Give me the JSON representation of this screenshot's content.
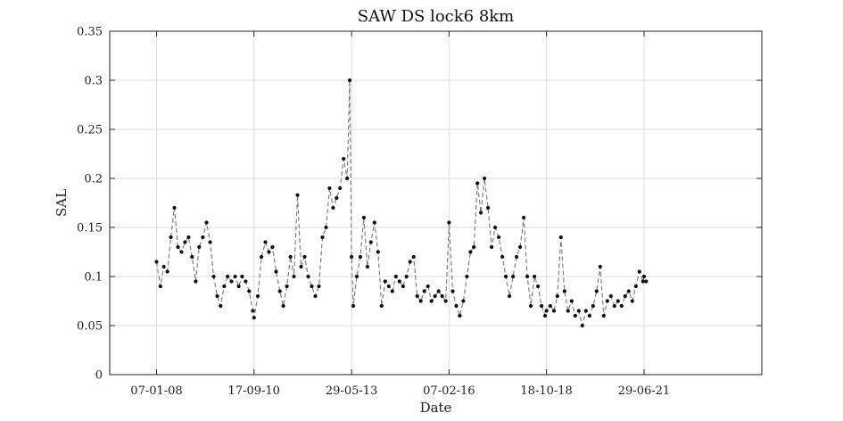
{
  "chart_data": {
    "type": "line",
    "title": "SAW DS lock6 8km",
    "xlabel": "Date",
    "ylabel": "SAL",
    "ylim": [
      0,
      0.35
    ],
    "yticks": [
      "0",
      "0.05",
      "0.1",
      "0.15",
      "0.2",
      "0.25",
      "0.3",
      "0.35"
    ],
    "xticks": [
      "07-01-08",
      "17-09-10",
      "29-05-13",
      "07-02-16",
      "18-10-18",
      "29-06-21"
    ],
    "xlim": [
      "2006-09-21",
      "2024-09-30"
    ],
    "grid": true,
    "marker": "filled-circle",
    "line_style": "dashed",
    "series": [
      {
        "x": [
          "2008-01-07",
          "2008-02-15",
          "2008-03-20",
          "2008-04-25",
          "2008-05-30",
          "2008-07-05",
          "2008-08-10",
          "2008-09-15",
          "2008-10-20",
          "2008-11-25",
          "2008-12-30",
          "2009-02-05",
          "2009-03-12",
          "2009-04-18",
          "2009-05-25",
          "2009-07-01",
          "2009-08-05",
          "2009-09-10",
          "2009-10-15",
          "2009-11-20",
          "2009-12-25",
          "2010-02-01",
          "2010-03-10",
          "2010-04-15",
          "2010-05-20",
          "2010-06-25",
          "2010-07-30",
          "2010-09-05",
          "2010-09-17",
          "2010-10-25",
          "2010-12-01",
          "2011-01-10",
          "2011-02-15",
          "2011-03-22",
          "2011-04-28",
          "2011-06-05",
          "2011-07-10",
          "2011-08-15",
          "2011-09-20",
          "2011-10-25",
          "2011-11-30",
          "2012-01-05",
          "2012-02-10",
          "2012-03-17",
          "2012-04-22",
          "2012-05-28",
          "2012-07-03",
          "2012-08-08",
          "2012-09-13",
          "2012-10-18",
          "2012-11-23",
          "2012-12-28",
          "2013-02-02",
          "2013-03-10",
          "2013-04-15",
          "2013-05-10",
          "2013-05-29",
          "2013-06-15",
          "2013-07-20",
          "2013-08-25",
          "2013-09-30",
          "2013-11-05",
          "2013-12-10",
          "2014-01-15",
          "2014-02-20",
          "2014-03-28",
          "2014-05-03",
          "2014-06-08",
          "2014-07-14",
          "2014-08-19",
          "2014-09-24",
          "2014-10-30",
          "2014-12-05",
          "2015-01-10",
          "2015-02-15",
          "2015-03-23",
          "2015-04-28",
          "2015-06-03",
          "2015-07-09",
          "2015-08-14",
          "2015-09-19",
          "2015-10-25",
          "2015-11-30",
          "2016-01-05",
          "2016-02-07",
          "2016-03-15",
          "2016-04-20",
          "2016-05-25",
          "2016-06-30",
          "2016-08-05",
          "2016-09-10",
          "2016-10-15",
          "2016-11-20",
          "2016-12-25",
          "2017-01-30",
          "2017-03-07",
          "2017-04-12",
          "2017-05-18",
          "2017-06-23",
          "2017-07-29",
          "2017-09-03",
          "2017-10-09",
          "2017-11-14",
          "2017-12-20",
          "2018-01-25",
          "2018-03-02",
          "2018-04-07",
          "2018-05-13",
          "2018-06-18",
          "2018-07-24",
          "2018-08-29",
          "2018-10-04",
          "2018-10-18",
          "2018-11-25",
          "2019-01-01",
          "2019-02-05",
          "2019-03-13",
          "2019-04-18",
          "2019-05-24",
          "2019-06-29",
          "2019-08-04",
          "2019-09-09",
          "2019-10-15",
          "2019-11-20",
          "2019-12-26",
          "2020-01-31",
          "2020-03-07",
          "2020-04-12",
          "2020-05-18",
          "2020-06-23",
          "2020-07-29",
          "2020-09-03",
          "2020-10-09",
          "2020-11-14",
          "2020-12-20",
          "2021-01-25",
          "2021-03-02",
          "2021-04-07",
          "2021-05-13",
          "2021-06-18",
          "2021-06-29",
          "2021-07-20"
        ],
        "y": [
          0.115,
          0.09,
          0.11,
          0.105,
          0.14,
          0.17,
          0.13,
          0.125,
          0.135,
          0.14,
          0.12,
          0.095,
          0.13,
          0.14,
          0.155,
          0.135,
          0.1,
          0.08,
          0.07,
          0.09,
          0.1,
          0.095,
          0.1,
          0.09,
          0.1,
          0.095,
          0.085,
          0.065,
          0.058,
          0.08,
          0.12,
          0.135,
          0.125,
          0.13,
          0.105,
          0.085,
          0.07,
          0.09,
          0.12,
          0.1,
          0.183,
          0.11,
          0.12,
          0.1,
          0.09,
          0.08,
          0.09,
          0.14,
          0.15,
          0.19,
          0.17,
          0.18,
          0.19,
          0.22,
          0.2,
          0.3,
          0.12,
          0.07,
          0.1,
          0.12,
          0.16,
          0.11,
          0.135,
          0.155,
          0.125,
          0.07,
          0.095,
          0.09,
          0.085,
          0.1,
          0.095,
          0.09,
          0.1,
          0.115,
          0.12,
          0.08,
          0.075,
          0.085,
          0.09,
          0.075,
          0.08,
          0.085,
          0.08,
          0.075,
          0.155,
          0.085,
          0.07,
          0.06,
          0.075,
          0.1,
          0.125,
          0.13,
          0.195,
          0.165,
          0.2,
          0.17,
          0.13,
          0.15,
          0.14,
          0.12,
          0.1,
          0.08,
          0.1,
          0.12,
          0.13,
          0.16,
          0.1,
          0.07,
          0.1,
          0.09,
          0.07,
          0.06,
          0.065,
          0.07,
          0.065,
          0.08,
          0.14,
          0.085,
          0.065,
          0.075,
          0.06,
          0.065,
          0.05,
          0.065,
          0.06,
          0.07,
          0.085,
          0.11,
          0.06,
          0.075,
          0.08,
          0.07,
          0.075,
          0.07,
          0.08,
          0.085,
          0.075,
          0.09,
          0.105,
          0.095,
          0.1,
          0.095
        ]
      }
    ]
  }
}
